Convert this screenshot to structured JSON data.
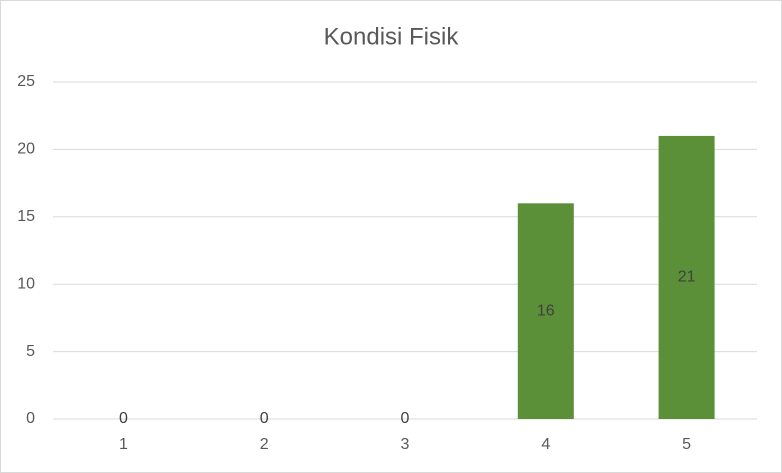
{
  "chart_data": {
    "type": "bar",
    "title": "Kondisi Fisik",
    "categories": [
      "1",
      "2",
      "3",
      "4",
      "5"
    ],
    "values": [
      0,
      0,
      0,
      16,
      21
    ],
    "color": "#5b8f38",
    "ylim": [
      0,
      25
    ],
    "yticks": [
      0,
      5,
      10,
      15,
      20,
      25
    ],
    "grid": true
  }
}
